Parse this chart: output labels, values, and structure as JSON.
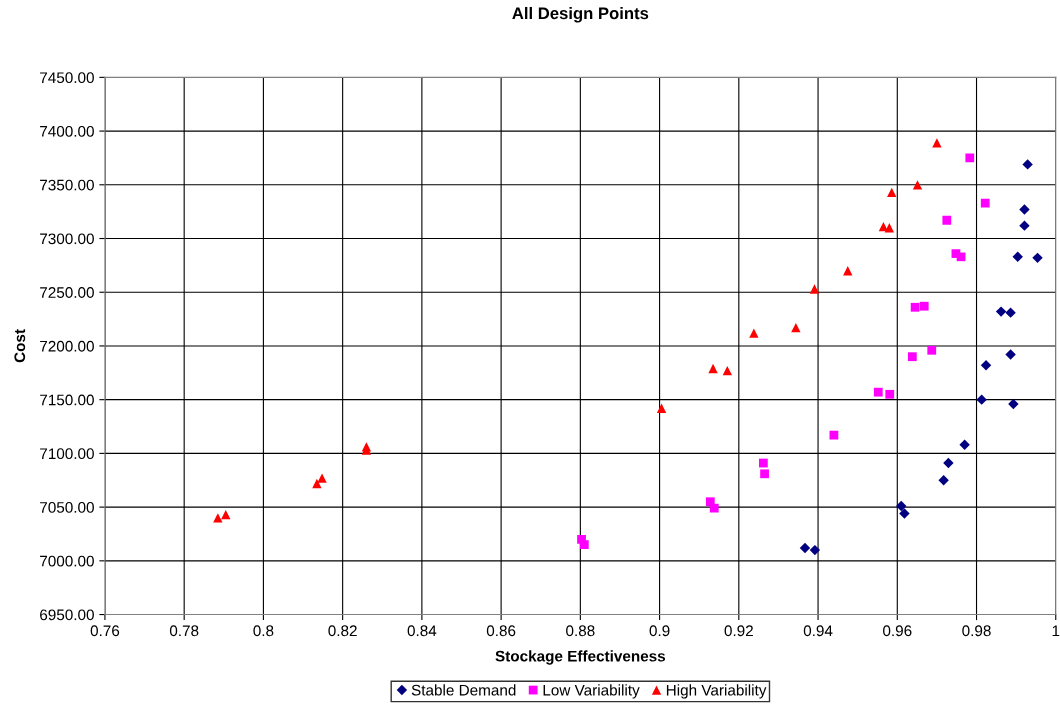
{
  "chart_data": {
    "type": "scatter",
    "title": "All Design Points",
    "xlabel": "Stockage Effectiveness",
    "ylabel": "Cost",
    "xlim": [
      0.76,
      1.0
    ],
    "xticks": [
      0.76,
      0.78,
      {
        "value": 0.8,
        "label": "0.8"
      },
      0.82,
      0.84,
      0.86,
      0.88,
      {
        "value": 0.9,
        "label": "0.9"
      },
      0.92,
      0.94,
      0.96,
      0.98,
      {
        "value": 1.0,
        "label": "1"
      }
    ],
    "ylim": [
      6950,
      7450
    ],
    "yticks": [
      {
        "value": 6950,
        "label": "6950.00"
      },
      {
        "value": 7000,
        "label": "7000.00"
      },
      {
        "value": 7050,
        "label": "7050.00"
      },
      {
        "value": 7100,
        "label": "7100.00"
      },
      {
        "value": 7150,
        "label": "7150.00"
      },
      {
        "value": 7200,
        "label": "7200.00"
      },
      {
        "value": 7250,
        "label": "7250.00"
      },
      {
        "value": 7300,
        "label": "7300.00"
      },
      {
        "value": 7350,
        "label": "7350.00"
      },
      {
        "value": 7400,
        "label": "7400.00"
      },
      {
        "value": 7450,
        "label": "7450.00"
      }
    ],
    "grid": true,
    "legend": "bottom",
    "series": [
      {
        "name": "Stable Demand",
        "color": "#000080",
        "marker": "diamond",
        "x": [
          0.9929,
          0.9921,
          0.9921,
          0.9904,
          0.9954,
          0.9862,
          0.9886,
          0.9824,
          0.9886,
          0.9813,
          0.9893,
          0.977,
          0.9729,
          0.9717,
          0.961,
          0.9618,
          0.9367,
          0.9392
        ],
        "values": [
          7369,
          7327,
          7312,
          7283,
          7282,
          7232,
          7231,
          7182,
          7192,
          7150,
          7146,
          7108,
          7091,
          7075,
          7051,
          7044,
          7012,
          7010
        ]
      },
      {
        "name": "Low Variability",
        "color": "#ff00ff",
        "marker": "square",
        "x": [
          0.9783,
          0.9822,
          0.9725,
          0.9748,
          0.9761,
          0.9645,
          0.9668,
          0.9638,
          0.9687,
          0.9552,
          0.9581,
          0.944,
          0.9262,
          0.9265,
          0.9128,
          0.9138,
          0.8803,
          0.881
        ],
        "values": [
          7375,
          7333,
          7317,
          7286,
          7283,
          7236,
          7237,
          7190,
          7196,
          7157,
          7155,
          7117,
          7091,
          7081,
          7055,
          7049,
          7020,
          7015
        ]
      },
      {
        "name": "High Variability",
        "color": "#ff0000",
        "marker": "triangle",
        "x": [
          0.97,
          0.9651,
          0.9586,
          0.9565,
          0.958,
          0.9475,
          0.9391,
          0.9344,
          0.9238,
          0.9135,
          0.9171,
          0.9005,
          0.826,
          0.826,
          0.8148,
          0.8135,
          0.7905,
          0.7885
        ],
        "values": [
          7389,
          7350,
          7343,
          7311,
          7310,
          7270,
          7253,
          7217,
          7212,
          7179,
          7177,
          7142,
          7106,
          7103,
          7077,
          7072,
          7043,
          7040
        ]
      }
    ]
  }
}
